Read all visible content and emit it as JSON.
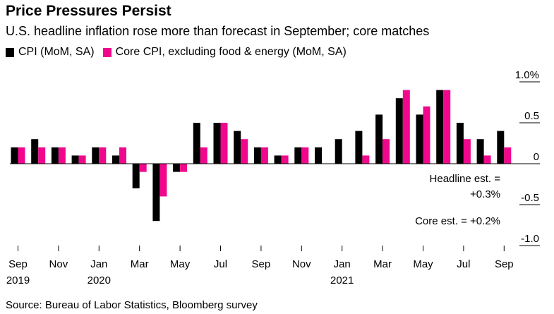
{
  "colors": {
    "cpi": "#000000",
    "core": "#f0078c",
    "axis": "#000000",
    "grid": "#000000"
  },
  "chart_data": {
    "type": "bar",
    "title": "Price Pressures Persist",
    "subtitle": "U.S. headline inflation rose more than forecast in September; core matches",
    "categories": [
      "Sep 2019",
      "Oct 2019",
      "Nov 2019",
      "Dec 2019",
      "Jan 2020",
      "Feb 2020",
      "Mar 2020",
      "Apr 2020",
      "May 2020",
      "Jun 2020",
      "Jul 2020",
      "Aug 2020",
      "Sep 2020",
      "Oct 2020",
      "Nov 2020",
      "Dec 2020",
      "Jan 2021",
      "Feb 2021",
      "Mar 2021",
      "Apr 2021",
      "May 2021",
      "Jun 2021",
      "Jul 2021",
      "Aug 2021",
      "Sep 2021"
    ],
    "series": [
      {
        "name": "CPI (MoM, SA)",
        "values": [
          0.2,
          0.3,
          0.2,
          0.1,
          0.2,
          0.1,
          -0.3,
          -0.7,
          -0.1,
          0.5,
          0.5,
          0.4,
          0.2,
          0.1,
          0.2,
          0.2,
          0.3,
          0.4,
          0.6,
          0.8,
          0.6,
          0.9,
          0.5,
          0.3,
          0.4
        ]
      },
      {
        "name": "Core CPI, excluding food & energy (MoM, SA)",
        "values": [
          0.2,
          0.2,
          0.2,
          0.1,
          0.2,
          0.2,
          -0.1,
          -0.4,
          -0.1,
          0.2,
          0.5,
          0.3,
          0.2,
          0.1,
          0.2,
          0.0,
          0.0,
          0.1,
          0.3,
          0.9,
          0.7,
          0.9,
          0.3,
          0.1,
          0.2
        ]
      }
    ],
    "x_tick_labels": [
      {
        "month": "Sep",
        "year": "2019",
        "index": 0
      },
      {
        "month": "Nov",
        "year": "",
        "index": 2
      },
      {
        "month": "Jan",
        "year": "2020",
        "index": 4
      },
      {
        "month": "Mar",
        "year": "",
        "index": 6
      },
      {
        "month": "May",
        "year": "",
        "index": 8
      },
      {
        "month": "Jul",
        "year": "",
        "index": 10
      },
      {
        "month": "Sep",
        "year": "",
        "index": 12
      },
      {
        "month": "Nov",
        "year": "",
        "index": 14
      },
      {
        "month": "Jan",
        "year": "2021",
        "index": 16
      },
      {
        "month": "Mar",
        "year": "",
        "index": 18
      },
      {
        "month": "May",
        "year": "",
        "index": 20
      },
      {
        "month": "Jul",
        "year": "",
        "index": 22
      },
      {
        "month": "Sep",
        "year": "",
        "index": 24
      }
    ],
    "y_ticks": [
      {
        "value": 1.0,
        "label": "1.0%"
      },
      {
        "value": 0.5,
        "label": "0.5"
      },
      {
        "value": 0,
        "label": "0"
      },
      {
        "value": -0.5,
        "label": "-0.5"
      },
      {
        "value": -1.0,
        "label": "-1.0"
      }
    ],
    "ylim": [
      -1.0,
      1.0
    ],
    "y_axis_side": "right",
    "grid": false,
    "legend_placement": "top-left",
    "annotations": [
      {
        "lines": [
          "Headline est. =",
          "+0.3%"
        ]
      },
      {
        "lines": [
          "Core est. = +0.2%"
        ]
      }
    ]
  },
  "source": "Source: Bureau of Labor Statistics, Bloomberg survey"
}
